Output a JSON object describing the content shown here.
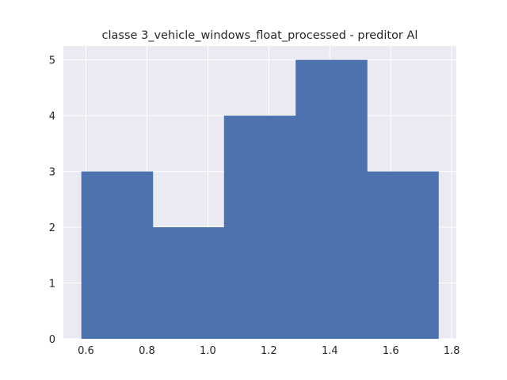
{
  "chart_data": {
    "type": "bar",
    "title": "classe 3_vehicle_windows_float_processed - preditor Al",
    "xlabel": "",
    "ylabel": "",
    "bin_edges": [
      0.585,
      0.819,
      1.053,
      1.288,
      1.522,
      1.756
    ],
    "values": [
      3,
      2,
      4,
      5,
      3
    ],
    "xlim": [
      0.526,
      1.815
    ],
    "ylim": [
      0,
      5.25
    ],
    "x_ticks": [
      0.6,
      0.8,
      1.0,
      1.2,
      1.4,
      1.6,
      1.8
    ],
    "x_tick_labels": [
      "0.6",
      "0.8",
      "1.0",
      "1.2",
      "1.4",
      "1.6",
      "1.8"
    ],
    "y_ticks": [
      0,
      1,
      2,
      3,
      4,
      5
    ],
    "y_tick_labels": [
      "0",
      "1",
      "2",
      "3",
      "4",
      "5"
    ],
    "grid": true,
    "bar_color": "#4c72b0",
    "background_color": "#eaeaf2",
    "grid_color": "#ffffff"
  }
}
